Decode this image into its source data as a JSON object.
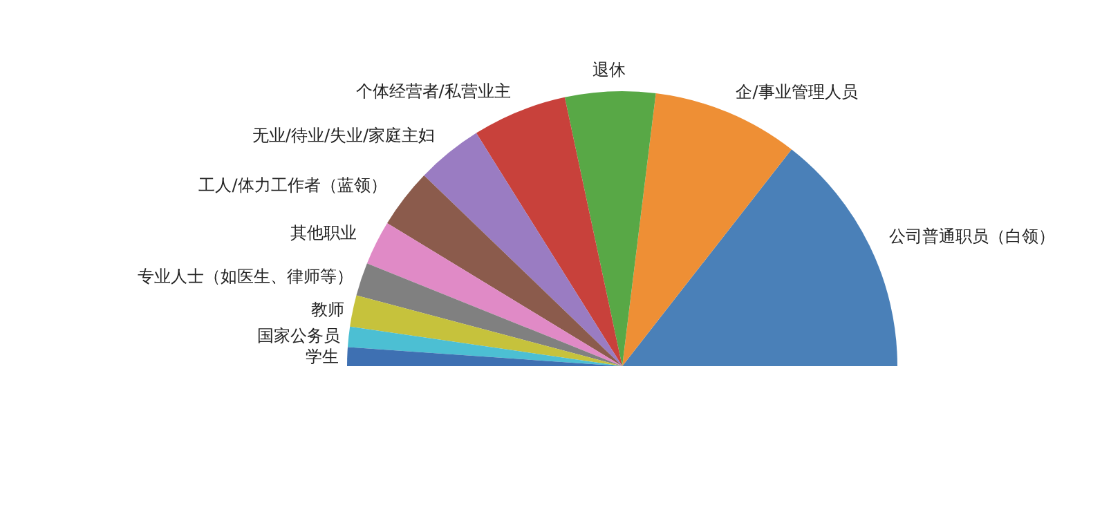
{
  "chart_data": {
    "type": "pie",
    "categories": [
      "公司普通职员（白领）",
      "企/事业管理人员",
      "退休",
      "个体经营者/私营业主",
      "无业/待业/失业/家庭主妇",
      "工人/体力工作者（蓝领）",
      "其他职业",
      "专业人士（如医生、律师等）",
      "教师",
      "国家公务员",
      "学生"
    ],
    "values": [
      28.9,
      17.2,
      10.6,
      11.1,
      7.8,
      7.0,
      5.2,
      3.9,
      3.7,
      2.4,
      2.2
    ],
    "colors": [
      "#4a80b8",
      "#ee8f35",
      "#58a846",
      "#c8413b",
      "#9a7cc2",
      "#8b5b4c",
      "#e08ac6",
      "#808080",
      "#c6c23c",
      "#4cbfd3",
      "#3e70b2"
    ]
  }
}
